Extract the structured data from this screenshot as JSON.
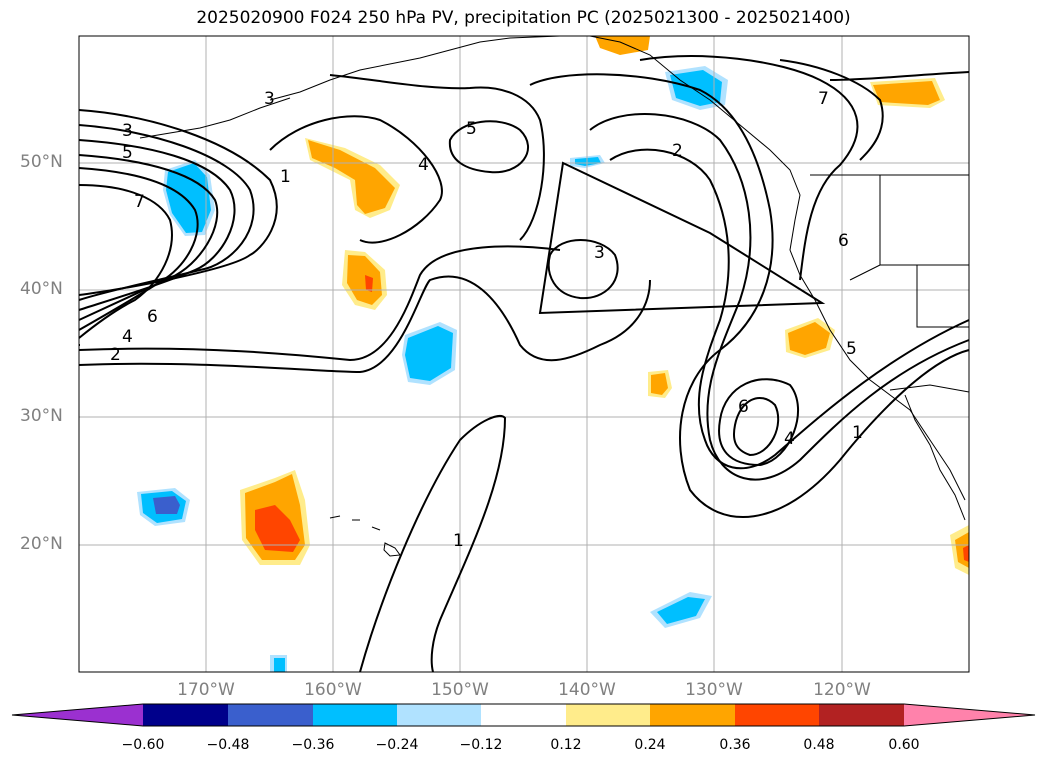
{
  "title": "2025020900 F024 250 hPa PV, precipitation PC (2025021300 - 2025021400)",
  "lat_labels": [
    "50°N",
    "40°N",
    "30°N",
    "20°N"
  ],
  "lon_labels": [
    "170°W",
    "160°W",
    "150°W",
    "140°W",
    "130°W",
    "120°W"
  ],
  "colorbar": {
    "ticks": [
      "−0.60",
      "−0.48",
      "−0.36",
      "−0.24",
      "−0.12",
      "0.12",
      "0.24",
      "0.36",
      "0.48",
      "0.60"
    ],
    "colors": [
      "#9b30d0",
      "#00008b",
      "#3a5fcd",
      "#00bfff",
      "#b0e2ff",
      "#ffffff",
      "#ffec8b",
      "#ffa500",
      "#ff4500",
      "#b22222",
      "#ff82ab"
    ]
  },
  "contour_labels": [
    "3",
    "5",
    "7",
    "6",
    "4",
    "2",
    "3",
    "1",
    "4",
    "5",
    "2",
    "3",
    "7",
    "6",
    "5",
    "6",
    "4",
    "1",
    "1"
  ],
  "colors": {
    "grid": "#b0b0b0",
    "contour": "#000000",
    "axis_text": "#808080"
  }
}
